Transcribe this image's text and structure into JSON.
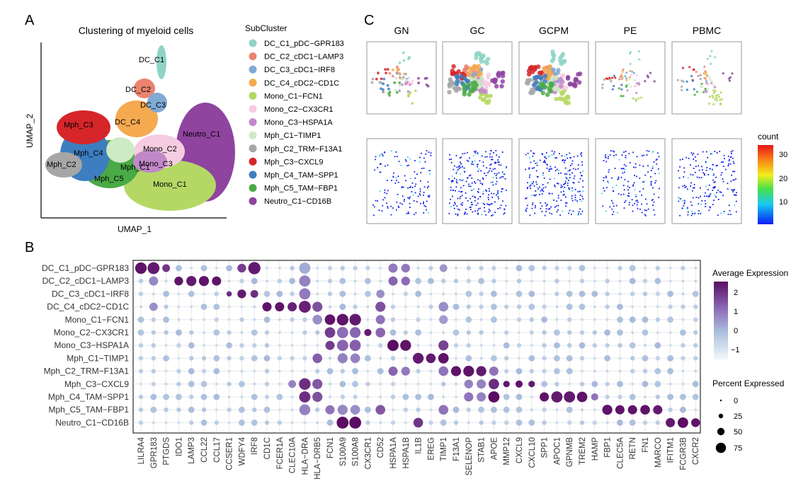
{
  "panels": {
    "A": {
      "letter": "A",
      "title": "Clustering of myeloid cells",
      "xlabel": "UMAP_1",
      "ylabel": "UMAP_2",
      "cluster_labels": [
        "DC_C1",
        "DC_C2",
        "DC_C3",
        "DC_C4",
        "Mph_C3",
        "Mph_C4",
        "Mph_C2",
        "Mph_C5",
        "Mph_C1",
        "Mono_C2",
        "Mono_C3",
        "Mono_C1",
        "Neutro_C1"
      ]
    },
    "legend": {
      "title": "SubCluster",
      "items": [
        {
          "label": "DC_C1_pDC−GPR183",
          "color": "#8fd3c7"
        },
        {
          "label": "DC_C2_cDC1−LAMP3",
          "color": "#ea8470"
        },
        {
          "label": "DC_C3_cDC1−IRF8",
          "color": "#80a9d6"
        },
        {
          "label": "DC_C4_cDC2−CD1C",
          "color": "#f5aa50"
        },
        {
          "label": "Mono_C1−FCN1",
          "color": "#b5d865"
        },
        {
          "label": "Mono_C2−CX3CR1",
          "color": "#f6cde0"
        },
        {
          "label": "Mono_C3−HSPA1A",
          "color": "#c188c8"
        },
        {
          "label": "Mph_C1−TIMP1",
          "color": "#cdebc5"
        },
        {
          "label": "Mph_C2_TRM−F13A1",
          "color": "#a6a6a6"
        },
        {
          "label": "Mph_C3−CXCL9",
          "color": "#d6262a"
        },
        {
          "label": "Mph_C4_TAM−SPP1",
          "color": "#3c7ec0"
        },
        {
          "label": "Mph_C5_TAM−FBP1",
          "color": "#4aaa45"
        },
        {
          "label": "Neutro_C1−CD16B",
          "color": "#8f44a0"
        }
      ]
    },
    "C": {
      "letter": "C",
      "tissues": [
        "GN",
        "GC",
        "GCPM",
        "PE",
        "PBMC"
      ],
      "colorbar_title": "count",
      "colorbar_ticks": [
        "30",
        "20",
        "10"
      ]
    },
    "B": {
      "letter": "B",
      "legend_expr_title": "Average Expression",
      "legend_expr_ticks": [
        "2",
        "1",
        "0",
        "−1"
      ],
      "legend_pct_title": "Percent Expressed",
      "legend_pct_ticks": [
        "0",
        "25",
        "50",
        "75"
      ]
    }
  },
  "chart_data": {
    "type": "dotplot",
    "rows": [
      "DC_C1_pDC−GPR183",
      "DC_C2_cDC1−LAMP3",
      "DC_C3_cDC1−IRF8",
      "DC_C4_cDC2−CD1C",
      "Mono_C1−FCN1",
      "Mono_C2−CX3CR1",
      "Mono_C3−HSPA1A",
      "Mph_C1−TIMP1",
      "Mph_C2_TRM−F13A1",
      "Mph_C3−CXCL9",
      "Mph_C4_TAM−SPP1",
      "Mph_C5_TAM−FBP1",
      "Neutro_C1−CD16B"
    ],
    "genes": [
      "LILRA4",
      "GPR183",
      "PTGDS",
      "IDO1",
      "LAMP3",
      "CCL22",
      "CCL17",
      "CCSER1",
      "WDFY4",
      "IRF8",
      "CD1C",
      "FCER1A",
      "CLEC10A",
      "HLA−DRA",
      "HLA−DRB5",
      "FCN1",
      "S100A9",
      "S100A8",
      "CX3CR1",
      "CD52",
      "HSPA1A",
      "HSPA1B",
      "IL1B",
      "EREG",
      "TIMP1",
      "F13A1",
      "SELENOP",
      "STAB1",
      "APOE",
      "MMP12",
      "CXCL9",
      "CXCL10",
      "SPP1",
      "APOC1",
      "GPNMB",
      "TREM2",
      "HAMP",
      "FBP1",
      "CLEC5A",
      "RETN",
      "FN1",
      "MARCO",
      "IFITM1",
      "FCGR3B",
      "CXCR2"
    ],
    "expr_range": [
      -1.5,
      2.5
    ],
    "pct_range": [
      0,
      80
    ],
    "highlights": [
      [
        0,
        0,
        2.4,
        75
      ],
      [
        0,
        1,
        2.3,
        80
      ],
      [
        0,
        2,
        1.9,
        30
      ],
      [
        0,
        8,
        1.8,
        40
      ],
      [
        0,
        9,
        2.3,
        85
      ],
      [
        0,
        13,
        0.2,
        70
      ],
      [
        0,
        20,
        0.9,
        45
      ],
      [
        0,
        21,
        0.9,
        40
      ],
      [
        0,
        24,
        0.5,
        30
      ],
      [
        1,
        1,
        0.7,
        45
      ],
      [
        1,
        3,
        2.4,
        40
      ],
      [
        1,
        4,
        2.3,
        55
      ],
      [
        1,
        5,
        2.4,
        55
      ],
      [
        1,
        6,
        2.4,
        45
      ],
      [
        1,
        13,
        0.8,
        70
      ],
      [
        1,
        20,
        1.2,
        45
      ],
      [
        1,
        21,
        1.1,
        40
      ],
      [
        2,
        7,
        2.0,
        12
      ],
      [
        2,
        8,
        2.3,
        40
      ],
      [
        2,
        9,
        2.0,
        30
      ],
      [
        2,
        13,
        0.9,
        70
      ],
      [
        2,
        19,
        0.6,
        35
      ],
      [
        3,
        1,
        0.6,
        35
      ],
      [
        3,
        10,
        2.4,
        45
      ],
      [
        3,
        11,
        2.4,
        45
      ],
      [
        3,
        12,
        2.2,
        45
      ],
      [
        3,
        13,
        2.2,
        80
      ],
      [
        3,
        14,
        1.5,
        55
      ],
      [
        3,
        19,
        1.5,
        55
      ],
      [
        3,
        24,
        0.6,
        50
      ],
      [
        4,
        14,
        0.6,
        50
      ],
      [
        4,
        15,
        2.4,
        60
      ],
      [
        4,
        16,
        2.4,
        75
      ],
      [
        4,
        17,
        2.3,
        75
      ],
      [
        4,
        19,
        1.0,
        45
      ],
      [
        4,
        24,
        0.4,
        40
      ],
      [
        5,
        15,
        1.8,
        60
      ],
      [
        5,
        16,
        1.1,
        70
      ],
      [
        5,
        17,
        1.2,
        65
      ],
      [
        5,
        18,
        2.3,
        25
      ],
      [
        5,
        19,
        1.2,
        50
      ],
      [
        6,
        15,
        1.8,
        45
      ],
      [
        6,
        16,
        1.2,
        70
      ],
      [
        6,
        17,
        1.3,
        70
      ],
      [
        6,
        20,
        2.5,
        70
      ],
      [
        6,
        21,
        2.4,
        65
      ],
      [
        6,
        24,
        1.7,
        55
      ],
      [
        7,
        14,
        1.3,
        50
      ],
      [
        7,
        16,
        0.8,
        55
      ],
      [
        7,
        17,
        0.8,
        50
      ],
      [
        7,
        22,
        2.3,
        65
      ],
      [
        7,
        23,
        2.3,
        50
      ],
      [
        7,
        24,
        2.4,
        60
      ],
      [
        8,
        20,
        1.2,
        45
      ],
      [
        8,
        21,
        0.9,
        40
      ],
      [
        8,
        24,
        1.0,
        50
      ],
      [
        8,
        25,
        2.4,
        55
      ],
      [
        8,
        26,
        2.4,
        65
      ],
      [
        8,
        27,
        2.3,
        55
      ],
      [
        8,
        28,
        1.0,
        45
      ],
      [
        9,
        12,
        0.8,
        30
      ],
      [
        9,
        13,
        2.0,
        75
      ],
      [
        9,
        14,
        1.4,
        55
      ],
      [
        9,
        26,
        0.8,
        40
      ],
      [
        9,
        27,
        0.8,
        45
      ],
      [
        9,
        28,
        2.0,
        60
      ],
      [
        9,
        29,
        2.3,
        20
      ],
      [
        9,
        30,
        2.4,
        25
      ],
      [
        9,
        31,
        2.3,
        20
      ],
      [
        10,
        13,
        2.0,
        70
      ],
      [
        10,
        14,
        1.5,
        55
      ],
      [
        10,
        26,
        1.0,
        45
      ],
      [
        10,
        27,
        0.8,
        45
      ],
      [
        10,
        28,
        2.5,
        70
      ],
      [
        10,
        32,
        2.4,
        45
      ],
      [
        10,
        33,
        2.3,
        70
      ],
      [
        10,
        34,
        2.3,
        70
      ],
      [
        10,
        35,
        2.4,
        60
      ],
      [
        10,
        36,
        1.0,
        25
      ],
      [
        11,
        13,
        0.8,
        65
      ],
      [
        11,
        15,
        1.0,
        45
      ],
      [
        11,
        16,
        0.7,
        55
      ],
      [
        11,
        17,
        0.6,
        50
      ],
      [
        11,
        19,
        1.4,
        50
      ],
      [
        11,
        24,
        1.0,
        50
      ],
      [
        11,
        37,
        2.4,
        55
      ],
      [
        11,
        38,
        2.4,
        45
      ],
      [
        11,
        39,
        2.4,
        45
      ],
      [
        11,
        40,
        2.4,
        50
      ],
      [
        11,
        41,
        2.3,
        45
      ],
      [
        12,
        16,
        2.5,
        80
      ],
      [
        12,
        17,
        2.5,
        80
      ],
      [
        12,
        22,
        1.9,
        50
      ],
      [
        12,
        42,
        2.3,
        45
      ],
      [
        12,
        43,
        2.5,
        60
      ],
      [
        12,
        44,
        2.4,
        40
      ]
    ]
  }
}
